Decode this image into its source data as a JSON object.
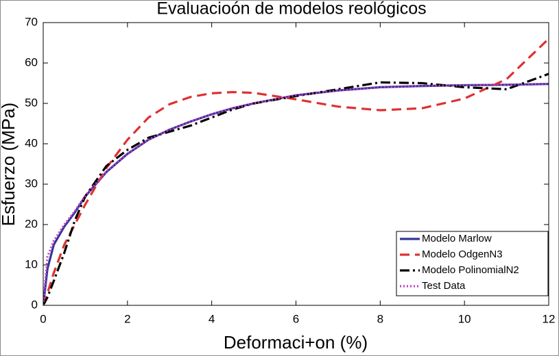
{
  "chart_data": {
    "type": "line",
    "title": "Evaluacioón de modelos reológicos",
    "x_label": "Deformaci+on (%)",
    "y_label": "Esfuerzo (MPa)",
    "x": [
      0,
      0.1,
      0.25,
      0.5,
      0.75,
      1,
      1.5,
      2,
      2.5,
      3,
      3.5,
      4,
      4.5,
      5,
      6,
      7,
      8,
      9,
      10,
      11,
      12
    ],
    "series": [
      {
        "name": "Modelo Marlow",
        "color": "#35359a",
        "style": "solid",
        "values": [
          0,
          9,
          15,
          19.5,
          23,
          27,
          33,
          37.5,
          41,
          43.5,
          45.5,
          47.3,
          48.8,
          50,
          52,
          53.2,
          54,
          54.3,
          54.5,
          54.6,
          54.8
        ]
      },
      {
        "name": "Modelo OdgenN3",
        "color": "#e03030",
        "style": "dashed",
        "values": [
          0,
          3,
          8,
          15,
          20,
          25,
          34,
          41,
          46.5,
          49.8,
          51.6,
          52.5,
          52.8,
          52.6,
          51,
          49.2,
          48.3,
          48.8,
          51.2,
          56,
          66
        ]
      },
      {
        "name": "Modelo PolinomialN2",
        "color": "#000000",
        "style": "dashdot",
        "values": [
          0,
          2,
          6,
          13,
          21,
          27,
          34.5,
          38.5,
          41.5,
          43,
          44.5,
          46.5,
          48.5,
          50,
          51.8,
          53.5,
          55.2,
          55,
          54,
          53.5,
          57.3
        ]
      },
      {
        "name": "Test Data",
        "color": "#c040c0",
        "style": "dotted",
        "values": [
          0,
          12,
          16,
          20,
          23.3,
          27.2,
          33.1,
          37.6,
          41,
          43.5,
          45.5,
          47.3,
          48.8,
          50,
          52,
          53.2,
          54,
          54.3,
          54.5,
          54.6,
          54.8
        ]
      }
    ],
    "xlim": [
      0,
      12
    ],
    "xticks": [
      0,
      2,
      4,
      6,
      8,
      10,
      12
    ],
    "ylim": [
      0,
      70
    ],
    "yticks": [
      0,
      10,
      20,
      30,
      40,
      50,
      60,
      70
    ],
    "grid": false,
    "legend": "lower right"
  }
}
